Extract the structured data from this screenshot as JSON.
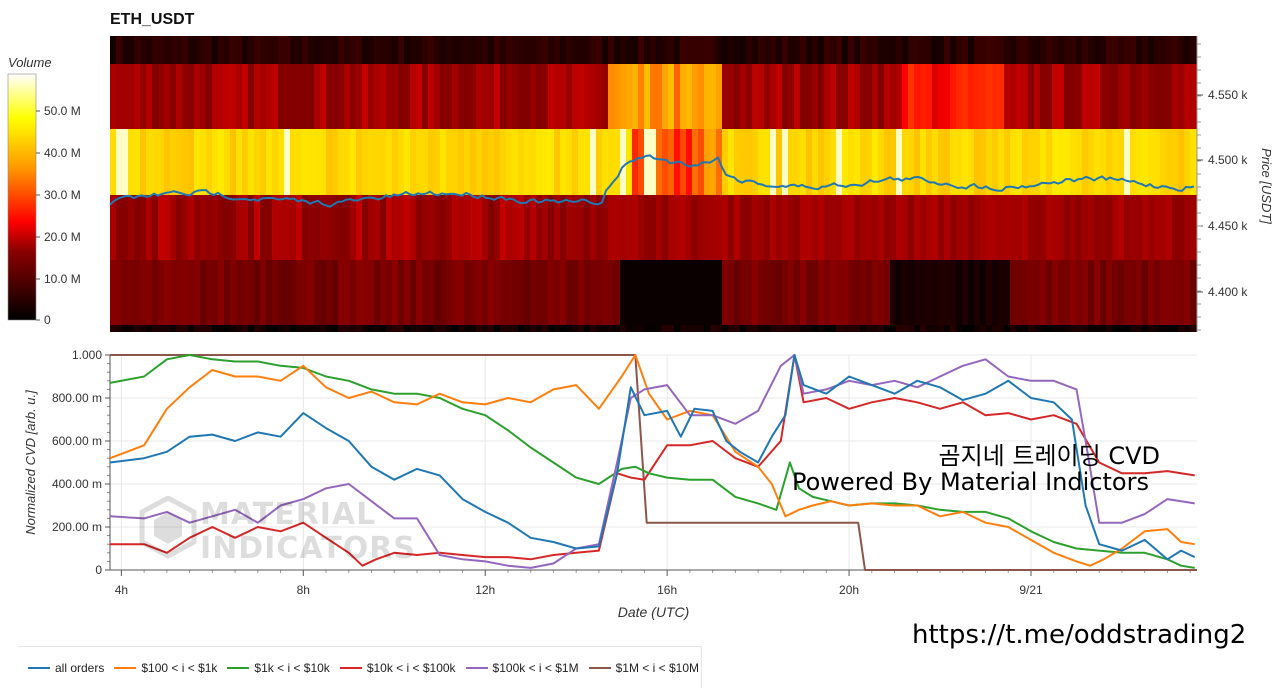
{
  "title": "ETH_USDT",
  "heatmap": {
    "colorbar_title": "Volume",
    "colorbar_ticks": [
      "0",
      "10.0 M",
      "20.0 M",
      "30.0 M",
      "40.0 M",
      "50.0 M"
    ],
    "price_axis_label": "Price [USDT]",
    "price_ticks": [
      "4.400 k",
      "4.450 k",
      "4.500 k",
      "4.550 k"
    ]
  },
  "chart_data": {
    "type": "line",
    "xlabel": "Date (UTC)",
    "ylabel": "Normalized CVD [arb. u.]",
    "x_ticks": [
      "4h",
      "8h",
      "12h",
      "16h",
      "20h",
      "9/21"
    ],
    "y_ticks": [
      "0",
      "200.00 m",
      "400.00 m",
      "600.00 m",
      "800.00 m",
      "1.000"
    ],
    "ylim": [
      0,
      1
    ],
    "xlim_hours": [
      3.75,
      27.65
    ],
    "series": [
      {
        "name": "all orders",
        "color": "#1f77b4",
        "x": [
          3.75,
          4.5,
          5.0,
          5.5,
          6.0,
          6.5,
          7.0,
          7.5,
          8.0,
          8.5,
          9.0,
          9.5,
          10.0,
          10.5,
          11.0,
          11.5,
          12.0,
          12.5,
          13.0,
          13.5,
          14.0,
          14.5,
          14.9,
          15.2,
          15.5,
          16.0,
          16.3,
          16.6,
          17.0,
          17.3,
          17.6,
          18.0,
          18.3,
          18.6,
          18.8,
          19.0,
          19.5,
          20.0,
          20.5,
          21.0,
          21.5,
          22.0,
          22.5,
          23.0,
          23.5,
          24.0,
          24.5,
          24.9,
          25.2,
          25.5,
          26.0,
          26.5,
          27.0,
          27.3,
          27.6
        ],
        "y": [
          0.5,
          0.52,
          0.55,
          0.62,
          0.63,
          0.6,
          0.64,
          0.62,
          0.73,
          0.66,
          0.6,
          0.48,
          0.42,
          0.47,
          0.44,
          0.33,
          0.27,
          0.22,
          0.15,
          0.13,
          0.1,
          0.11,
          0.45,
          0.85,
          0.72,
          0.74,
          0.62,
          0.75,
          0.74,
          0.6,
          0.55,
          0.5,
          0.62,
          0.72,
          1.0,
          0.86,
          0.82,
          0.9,
          0.86,
          0.82,
          0.88,
          0.85,
          0.79,
          0.82,
          0.88,
          0.8,
          0.78,
          0.7,
          0.3,
          0.12,
          0.09,
          0.14,
          0.05,
          0.09,
          0.06
        ]
      },
      {
        "name": "$100 < i < $1k",
        "color": "#ff7f0e",
        "x": [
          3.75,
          4.5,
          5.0,
          5.5,
          6.0,
          6.5,
          7.0,
          7.5,
          8.0,
          8.5,
          9.0,
          9.5,
          10.0,
          10.5,
          11.0,
          11.5,
          12.0,
          12.5,
          13.0,
          13.5,
          14.0,
          14.5,
          15.0,
          15.3,
          15.6,
          16.0,
          16.5,
          17.0,
          17.5,
          18.0,
          18.3,
          18.6,
          18.9,
          19.2,
          19.6,
          20.0,
          20.5,
          21.0,
          21.5,
          22.0,
          22.5,
          23.0,
          23.5,
          24.0,
          24.5,
          25.0,
          25.3,
          25.6,
          26.0,
          26.5,
          27.0,
          27.3,
          27.6
        ],
        "y": [
          0.52,
          0.58,
          0.75,
          0.85,
          0.93,
          0.9,
          0.9,
          0.88,
          0.95,
          0.85,
          0.8,
          0.83,
          0.78,
          0.77,
          0.82,
          0.78,
          0.77,
          0.8,
          0.78,
          0.84,
          0.86,
          0.75,
          0.9,
          1.0,
          0.82,
          0.7,
          0.74,
          0.72,
          0.55,
          0.48,
          0.4,
          0.25,
          0.28,
          0.3,
          0.32,
          0.3,
          0.31,
          0.3,
          0.3,
          0.25,
          0.27,
          0.22,
          0.2,
          0.14,
          0.08,
          0.04,
          0.02,
          0.05,
          0.1,
          0.18,
          0.19,
          0.13,
          0.12
        ]
      },
      {
        "name": "$1k < i < $10k",
        "color": "#2ca02c",
        "x": [
          3.75,
          4.5,
          5.0,
          5.5,
          6.0,
          6.5,
          7.0,
          7.5,
          8.0,
          8.5,
          9.0,
          9.5,
          10.0,
          10.5,
          11.0,
          11.5,
          12.0,
          12.5,
          13.0,
          13.5,
          14.0,
          14.5,
          15.0,
          15.3,
          15.6,
          16.0,
          16.5,
          17.0,
          17.5,
          18.0,
          18.4,
          18.7,
          18.9,
          19.2,
          19.6,
          20.0,
          20.5,
          21.0,
          21.5,
          22.0,
          22.5,
          23.0,
          23.5,
          24.0,
          24.5,
          25.0,
          25.5,
          26.0,
          26.5,
          27.0,
          27.3,
          27.6
        ],
        "y": [
          0.87,
          0.9,
          0.98,
          1.0,
          0.98,
          0.97,
          0.97,
          0.95,
          0.94,
          0.9,
          0.88,
          0.84,
          0.82,
          0.82,
          0.8,
          0.75,
          0.72,
          0.65,
          0.57,
          0.5,
          0.43,
          0.4,
          0.47,
          0.48,
          0.45,
          0.43,
          0.42,
          0.42,
          0.34,
          0.31,
          0.28,
          0.5,
          0.38,
          0.34,
          0.32,
          0.3,
          0.31,
          0.31,
          0.3,
          0.28,
          0.27,
          0.27,
          0.24,
          0.18,
          0.13,
          0.1,
          0.09,
          0.08,
          0.08,
          0.05,
          0.02,
          0.01
        ]
      },
      {
        "name": "$10k < i < $100k",
        "color": "#d62728",
        "x": [
          3.75,
          4.5,
          5.0,
          5.5,
          6.0,
          6.5,
          7.0,
          7.5,
          8.0,
          8.5,
          9.0,
          9.3,
          9.6,
          10.0,
          10.5,
          11.0,
          11.5,
          12.0,
          12.5,
          13.0,
          13.5,
          14.0,
          14.5,
          14.9,
          15.2,
          15.5,
          16.0,
          16.5,
          17.0,
          17.5,
          18.0,
          18.5,
          18.8,
          19.0,
          19.5,
          20.0,
          20.5,
          21.0,
          21.5,
          22.0,
          22.5,
          23.0,
          23.5,
          24.0,
          24.5,
          25.0,
          25.5,
          26.0,
          26.5,
          27.0,
          27.6
        ],
        "y": [
          0.12,
          0.12,
          0.08,
          0.15,
          0.2,
          0.15,
          0.2,
          0.18,
          0.22,
          0.15,
          0.08,
          0.02,
          0.05,
          0.08,
          0.07,
          0.08,
          0.07,
          0.06,
          0.06,
          0.05,
          0.07,
          0.08,
          0.09,
          0.45,
          0.43,
          0.42,
          0.58,
          0.58,
          0.6,
          0.52,
          0.48,
          0.6,
          1.0,
          0.78,
          0.8,
          0.75,
          0.78,
          0.8,
          0.78,
          0.75,
          0.78,
          0.72,
          0.73,
          0.7,
          0.72,
          0.68,
          0.5,
          0.45,
          0.45,
          0.46,
          0.44
        ]
      },
      {
        "name": "$100k < i < $1M",
        "color": "#9467bd",
        "x": [
          3.75,
          4.5,
          5.0,
          5.5,
          6.0,
          6.5,
          7.0,
          7.5,
          8.0,
          8.5,
          9.0,
          9.5,
          10.0,
          10.5,
          11.0,
          11.5,
          12.0,
          12.5,
          13.0,
          13.5,
          14.0,
          14.5,
          14.9,
          15.2,
          15.5,
          16.0,
          16.5,
          17.0,
          17.5,
          18.0,
          18.5,
          18.8,
          19.0,
          19.5,
          20.0,
          20.5,
          21.0,
          21.5,
          22.0,
          22.5,
          23.0,
          23.5,
          24.0,
          24.5,
          25.0,
          25.2,
          25.5,
          26.0,
          26.5,
          27.0,
          27.6
        ],
        "y": [
          0.25,
          0.24,
          0.27,
          0.22,
          0.25,
          0.28,
          0.22,
          0.3,
          0.33,
          0.38,
          0.4,
          0.32,
          0.24,
          0.24,
          0.07,
          0.05,
          0.04,
          0.02,
          0.01,
          0.03,
          0.1,
          0.12,
          0.5,
          0.8,
          0.84,
          0.86,
          0.72,
          0.72,
          0.68,
          0.74,
          0.95,
          1.0,
          0.82,
          0.84,
          0.88,
          0.86,
          0.88,
          0.85,
          0.9,
          0.95,
          0.98,
          0.9,
          0.88,
          0.88,
          0.84,
          0.6,
          0.22,
          0.22,
          0.26,
          0.33,
          0.31
        ]
      },
      {
        "name": "$1M < i < $10M",
        "color": "#8c564b",
        "x": [
          3.75,
          15.3,
          15.55,
          20.2,
          20.35,
          27.65
        ],
        "y": [
          1.0,
          1.0,
          0.22,
          0.22,
          0.0,
          0.0
        ]
      }
    ]
  }
}
